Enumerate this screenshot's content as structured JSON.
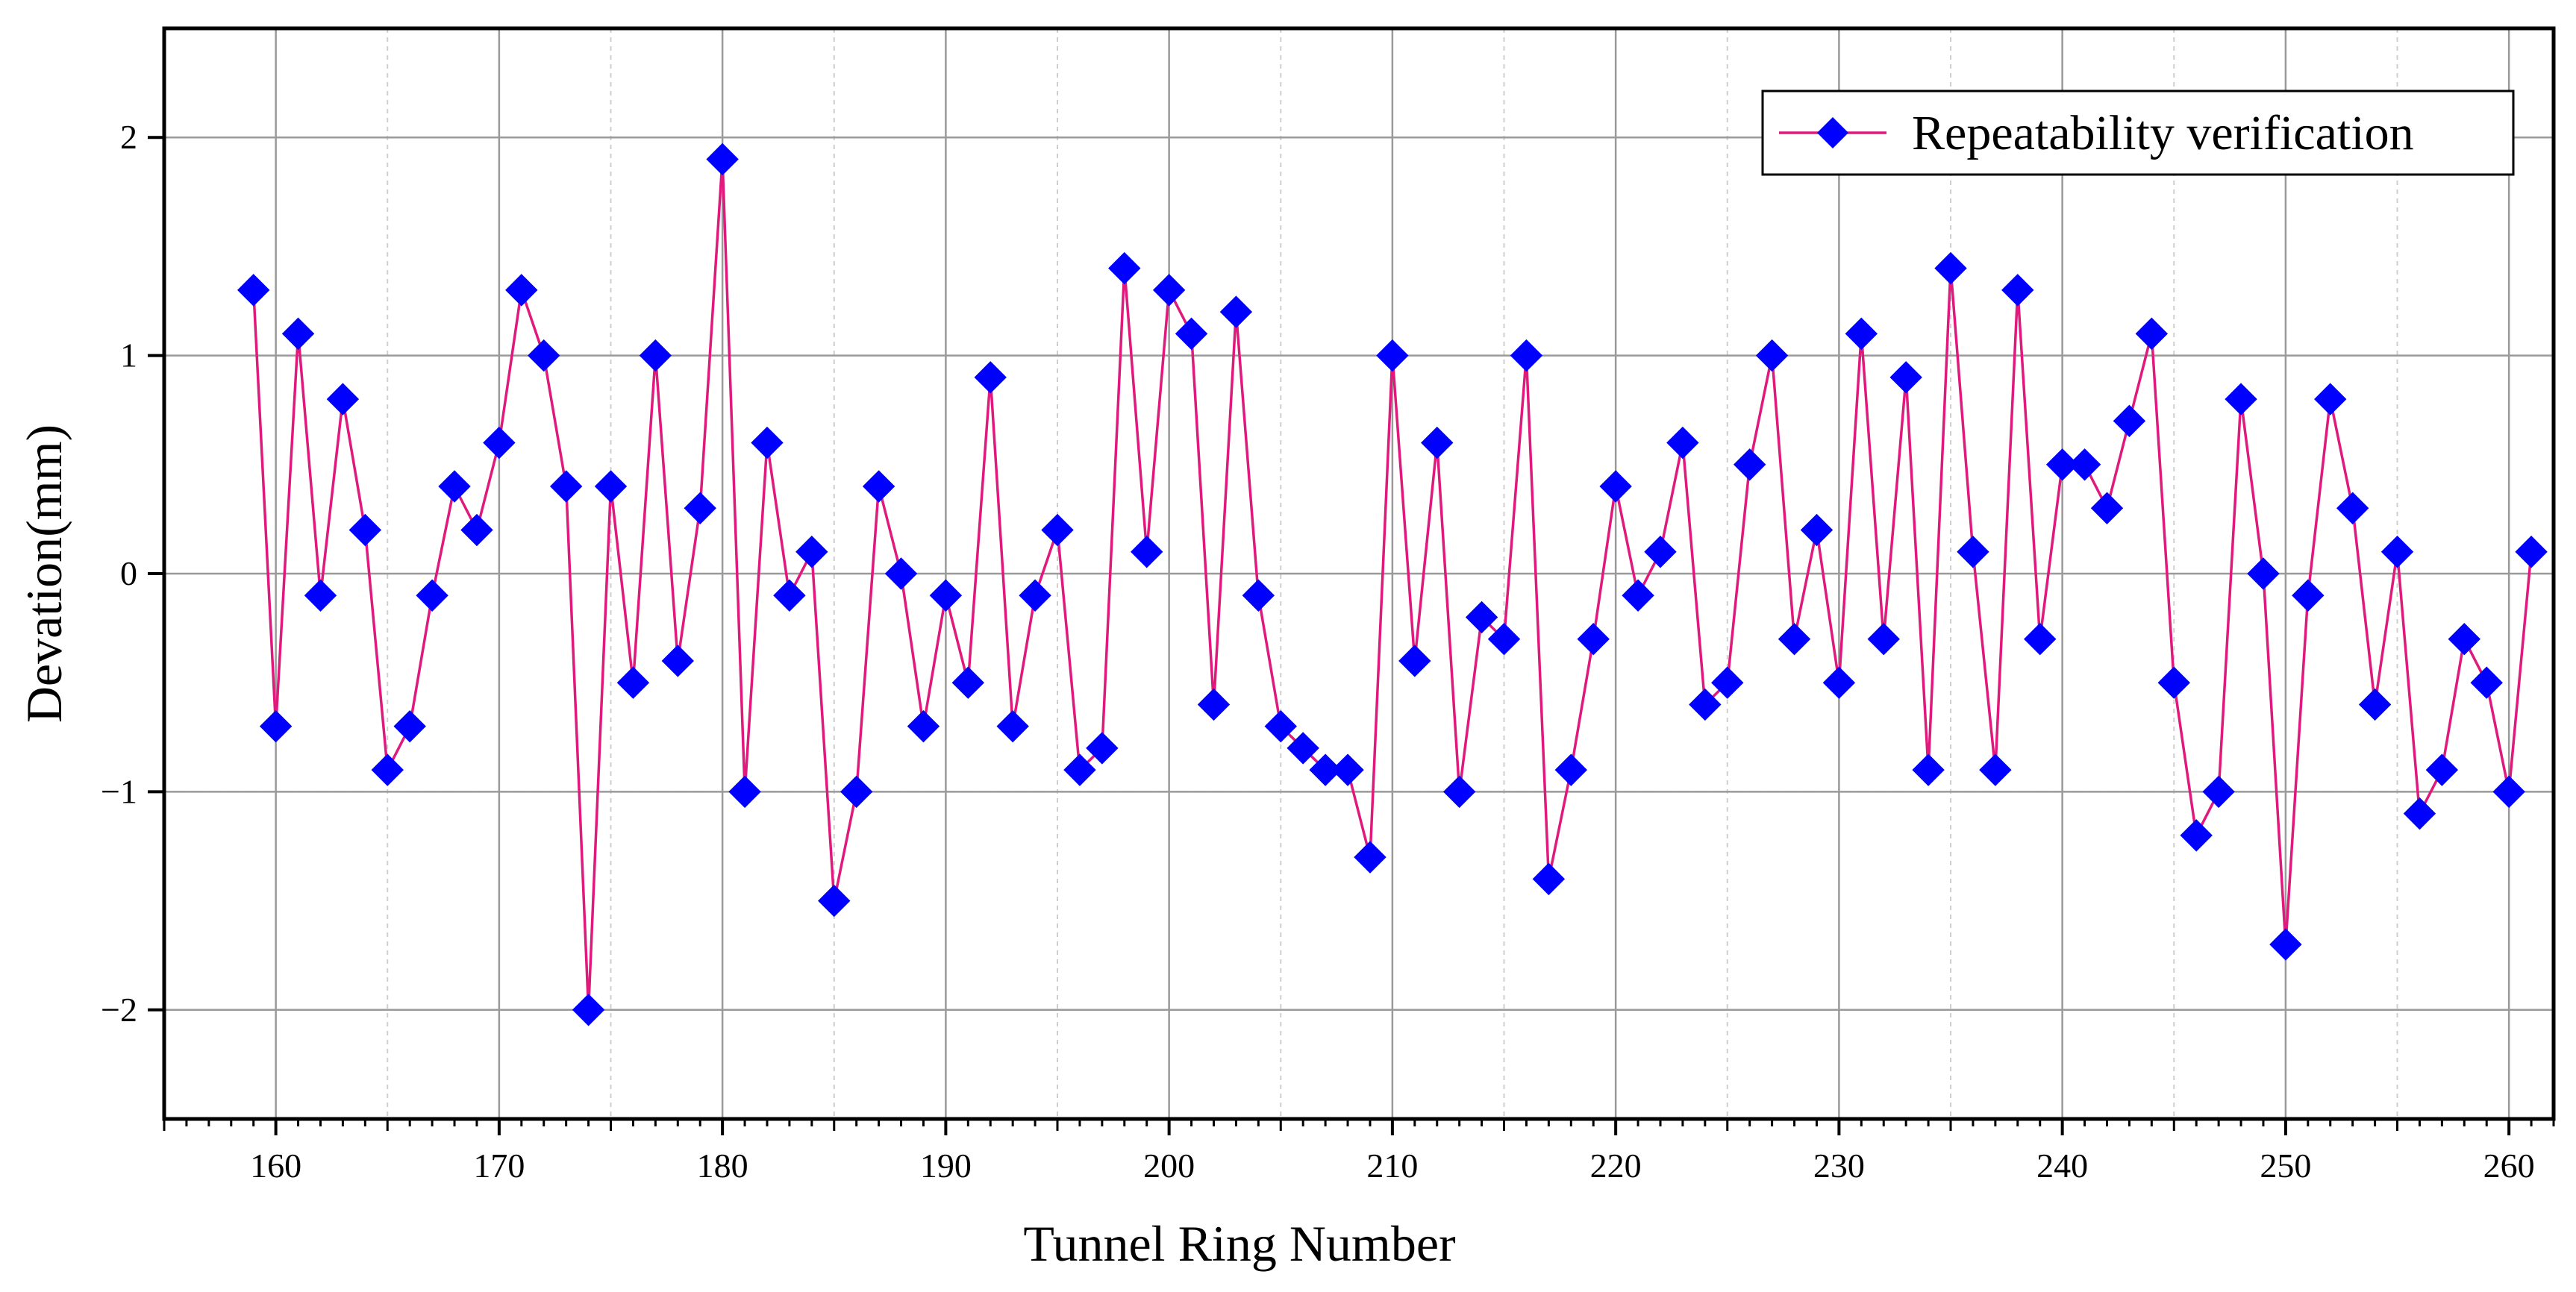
{
  "chart_data": {
    "type": "line",
    "title": "",
    "xlabel": "Tunnel Ring Number",
    "ylabel": "Devation(mm)",
    "xlim": [
      155,
      262
    ],
    "ylim": [
      -2.5,
      2.5
    ],
    "x_ticks": [
      160,
      170,
      180,
      190,
      200,
      210,
      220,
      230,
      240,
      250,
      260
    ],
    "x_tick_labels": [
      "160",
      "170",
      "180",
      "190",
      "200",
      "210",
      "220",
      "230",
      "240",
      "250",
      "260"
    ],
    "y_ticks": [
      -2,
      -1,
      0,
      1,
      2
    ],
    "y_tick_labels": [
      "−2",
      "−1",
      "0",
      "1",
      "2"
    ],
    "grid": true,
    "legend_position": "top-right",
    "series": [
      {
        "name": "Repeatability verification",
        "color": "#e0197d",
        "marker_color": "#0000ff",
        "marker": "diamond",
        "x": [
          159,
          160,
          161,
          162,
          163,
          164,
          165,
          166,
          167,
          168,
          169,
          170,
          171,
          172,
          173,
          174,
          175,
          176,
          177,
          178,
          179,
          180,
          181,
          182,
          183,
          184,
          185,
          186,
          187,
          188,
          189,
          190,
          191,
          192,
          193,
          194,
          195,
          196,
          197,
          198,
          199,
          200,
          201,
          202,
          203,
          204,
          205,
          206,
          207,
          208,
          209,
          210,
          211,
          212,
          213,
          214,
          215,
          216,
          217,
          218,
          219,
          220,
          221,
          222,
          223,
          224,
          225,
          226,
          227,
          228,
          229,
          230,
          231,
          232,
          233,
          234,
          235,
          236,
          237,
          238,
          239,
          240,
          241,
          242,
          243,
          244,
          245,
          246,
          247,
          248,
          249,
          250,
          251,
          252,
          253,
          254,
          255,
          256,
          257,
          258,
          259,
          260,
          261
        ],
        "values": [
          1.3,
          -0.7,
          1.1,
          -0.1,
          0.8,
          0.2,
          -0.9,
          -0.7,
          -0.1,
          0.4,
          0.2,
          0.6,
          1.3,
          1.0,
          0.4,
          -2.0,
          0.4,
          -0.5,
          1.0,
          -0.4,
          0.3,
          1.9,
          -1.0,
          0.6,
          -0.1,
          0.1,
          -1.5,
          -1.0,
          0.4,
          0.0,
          -0.7,
          -0.1,
          -0.5,
          0.9,
          -0.7,
          -0.1,
          0.2,
          -0.9,
          -0.8,
          1.4,
          0.1,
          1.3,
          1.1,
          -0.6,
          1.2,
          -0.1,
          -0.7,
          -0.8,
          -0.9,
          -0.9,
          -1.3,
          1.0,
          -0.4,
          0.6,
          -1.0,
          -0.2,
          -0.3,
          1.0,
          -1.4,
          -0.9,
          -0.3,
          0.4,
          -0.1,
          0.1,
          0.6,
          -0.6,
          -0.5,
          0.5,
          1.0,
          -0.3,
          0.2,
          -0.5,
          1.1,
          -0.3,
          0.9,
          -0.9,
          1.4,
          0.1,
          -0.9,
          1.3,
          -0.3,
          0.5,
          0.5,
          0.3,
          0.7,
          1.1,
          -0.5,
          -1.2,
          -1.0,
          0.8,
          0.0,
          -1.7,
          -0.1,
          0.8,
          0.3,
          -0.6,
          0.1,
          -1.1,
          -0.9,
          -0.3,
          -0.5,
          -1.0,
          0.1
        ]
      }
    ]
  },
  "colors": {
    "line": "#e0197d",
    "marker": "#0000ff",
    "axis": "#000000",
    "major_grid": "#9a9a9a",
    "minor_grid": "#cfcfcf"
  }
}
